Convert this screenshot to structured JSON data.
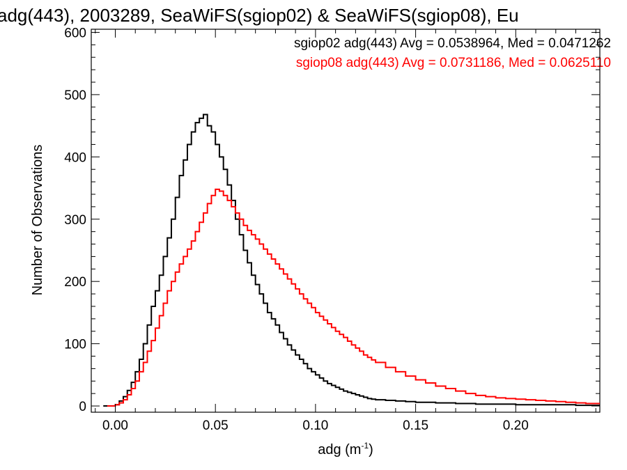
{
  "chart_data": {
    "type": "histogram-step",
    "title": "adg(443), 2003289, SeaWiFS(sgiop02) & SeaWiFS(sgiop08), Eu",
    "xlabel_main": "adg (m",
    "xlabel_sup": "-1",
    "xlabel_close": ")",
    "ylabel": "Number of Observations",
    "xlim": [
      -0.012,
      0.242
    ],
    "ylim": [
      -10,
      605
    ],
    "xticks": [
      0.0,
      0.05,
      0.1,
      0.15,
      0.2
    ],
    "xtick_labels": [
      "0.00",
      "0.05",
      "0.10",
      "0.15",
      "0.20"
    ],
    "yticks": [
      0,
      100,
      200,
      300,
      400,
      500,
      600
    ],
    "ytick_labels": [
      "0",
      "100",
      "200",
      "300",
      "400",
      "500",
      "600"
    ],
    "legend": [
      {
        "text": "sgiop02 adg(443) Avg = 0.0538964, Med = 0.0471262",
        "color": "#000000"
      },
      {
        "text": "sgiop08 adg(443) Avg = 0.0731186, Med = 0.0625110",
        "color": "#ff0000"
      }
    ],
    "series": [
      {
        "color": "#000000",
        "points": [
          [
            -0.006,
            0
          ],
          [
            0.0,
            2
          ],
          [
            0.002,
            8
          ],
          [
            0.004,
            15
          ],
          [
            0.006,
            25
          ],
          [
            0.008,
            38
          ],
          [
            0.01,
            55
          ],
          [
            0.012,
            75
          ],
          [
            0.014,
            100
          ],
          [
            0.016,
            130
          ],
          [
            0.018,
            160
          ],
          [
            0.02,
            185
          ],
          [
            0.022,
            210
          ],
          [
            0.024,
            240
          ],
          [
            0.026,
            270
          ],
          [
            0.028,
            300
          ],
          [
            0.03,
            335
          ],
          [
            0.032,
            370
          ],
          [
            0.034,
            395
          ],
          [
            0.036,
            420
          ],
          [
            0.038,
            440
          ],
          [
            0.04,
            455
          ],
          [
            0.042,
            462
          ],
          [
            0.044,
            468
          ],
          [
            0.046,
            450
          ],
          [
            0.048,
            440
          ],
          [
            0.05,
            420
          ],
          [
            0.052,
            400
          ],
          [
            0.054,
            380
          ],
          [
            0.056,
            355
          ],
          [
            0.058,
            330
          ],
          [
            0.06,
            300
          ],
          [
            0.062,
            275
          ],
          [
            0.064,
            250
          ],
          [
            0.066,
            230
          ],
          [
            0.068,
            210
          ],
          [
            0.07,
            195
          ],
          [
            0.072,
            180
          ],
          [
            0.074,
            165
          ],
          [
            0.076,
            150
          ],
          [
            0.078,
            140
          ],
          [
            0.08,
            130
          ],
          [
            0.082,
            118
          ],
          [
            0.084,
            108
          ],
          [
            0.086,
            98
          ],
          [
            0.088,
            90
          ],
          [
            0.09,
            82
          ],
          [
            0.092,
            75
          ],
          [
            0.094,
            68
          ],
          [
            0.096,
            60
          ],
          [
            0.098,
            55
          ],
          [
            0.1,
            50
          ],
          [
            0.102,
            45
          ],
          [
            0.104,
            40
          ],
          [
            0.106,
            36
          ],
          [
            0.108,
            33
          ],
          [
            0.11,
            30
          ],
          [
            0.112,
            27
          ],
          [
            0.114,
            24
          ],
          [
            0.116,
            22
          ],
          [
            0.118,
            20
          ],
          [
            0.12,
            18
          ],
          [
            0.122,
            16
          ],
          [
            0.124,
            14
          ],
          [
            0.126,
            12
          ],
          [
            0.128,
            11
          ],
          [
            0.13,
            10
          ],
          [
            0.135,
            9
          ],
          [
            0.14,
            8
          ],
          [
            0.145,
            7
          ],
          [
            0.15,
            6
          ],
          [
            0.16,
            5
          ],
          [
            0.17,
            4
          ],
          [
            0.18,
            3
          ],
          [
            0.19,
            3
          ],
          [
            0.2,
            2
          ],
          [
            0.21,
            2
          ],
          [
            0.22,
            2
          ],
          [
            0.23,
            1
          ],
          [
            0.24,
            1
          ]
        ]
      },
      {
        "color": "#ff0000",
        "points": [
          [
            -0.004,
            0
          ],
          [
            0.0,
            2
          ],
          [
            0.002,
            5
          ],
          [
            0.004,
            10
          ],
          [
            0.006,
            18
          ],
          [
            0.008,
            28
          ],
          [
            0.01,
            40
          ],
          [
            0.012,
            55
          ],
          [
            0.014,
            70
          ],
          [
            0.016,
            88
          ],
          [
            0.018,
            105
          ],
          [
            0.02,
            125
          ],
          [
            0.022,
            145
          ],
          [
            0.024,
            165
          ],
          [
            0.026,
            185
          ],
          [
            0.028,
            200
          ],
          [
            0.03,
            215
          ],
          [
            0.032,
            228
          ],
          [
            0.034,
            240
          ],
          [
            0.036,
            252
          ],
          [
            0.038,
            265
          ],
          [
            0.04,
            280
          ],
          [
            0.042,
            295
          ],
          [
            0.044,
            310
          ],
          [
            0.046,
            325
          ],
          [
            0.048,
            338
          ],
          [
            0.05,
            348
          ],
          [
            0.052,
            345
          ],
          [
            0.054,
            338
          ],
          [
            0.056,
            330
          ],
          [
            0.058,
            320
          ],
          [
            0.06,
            310
          ],
          [
            0.062,
            300
          ],
          [
            0.064,
            290
          ],
          [
            0.066,
            282
          ],
          [
            0.068,
            275
          ],
          [
            0.07,
            268
          ],
          [
            0.072,
            260
          ],
          [
            0.074,
            252
          ],
          [
            0.076,
            244
          ],
          [
            0.078,
            236
          ],
          [
            0.08,
            228
          ],
          [
            0.082,
            220
          ],
          [
            0.084,
            212
          ],
          [
            0.086,
            204
          ],
          [
            0.088,
            196
          ],
          [
            0.09,
            188
          ],
          [
            0.092,
            180
          ],
          [
            0.094,
            172
          ],
          [
            0.096,
            165
          ],
          [
            0.098,
            158
          ],
          [
            0.1,
            150
          ],
          [
            0.102,
            144
          ],
          [
            0.104,
            138
          ],
          [
            0.106,
            132
          ],
          [
            0.108,
            126
          ],
          [
            0.11,
            120
          ],
          [
            0.112,
            115
          ],
          [
            0.114,
            110
          ],
          [
            0.116,
            104
          ],
          [
            0.118,
            98
          ],
          [
            0.12,
            93
          ],
          [
            0.122,
            88
          ],
          [
            0.124,
            82
          ],
          [
            0.126,
            78
          ],
          [
            0.128,
            74
          ],
          [
            0.13,
            70
          ],
          [
            0.135,
            62
          ],
          [
            0.14,
            55
          ],
          [
            0.145,
            48
          ],
          [
            0.15,
            42
          ],
          [
            0.155,
            37
          ],
          [
            0.16,
            32
          ],
          [
            0.165,
            28
          ],
          [
            0.17,
            24
          ],
          [
            0.175,
            20
          ],
          [
            0.18,
            17
          ],
          [
            0.185,
            15
          ],
          [
            0.19,
            13
          ],
          [
            0.195,
            12
          ],
          [
            0.2,
            11
          ],
          [
            0.205,
            10
          ],
          [
            0.21,
            9
          ],
          [
            0.215,
            8
          ],
          [
            0.22,
            7
          ],
          [
            0.225,
            6
          ],
          [
            0.23,
            5
          ],
          [
            0.235,
            4
          ],
          [
            0.24,
            4
          ]
        ]
      }
    ]
  }
}
